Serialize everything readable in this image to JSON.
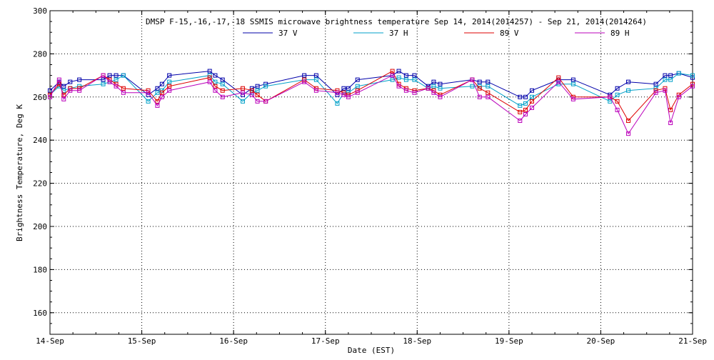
{
  "chart_data": {
    "type": "line",
    "title": "DMSP F-15,-16,-17,-18 SSMIS microwave brightness temperature Sep 14, 2014(2014257) - Sep 21, 2014(2014264)",
    "xlabel": "Date (EST)",
    "ylabel": "Brightness Temperature, Deg K",
    "ylim": [
      150,
      300
    ],
    "xlim": [
      0,
      7
    ],
    "x_ticks": [
      0,
      1,
      2,
      3,
      4,
      5,
      6,
      7
    ],
    "x_tick_labels": [
      "14-Sep",
      "15-Sep",
      "16-Sep",
      "17-Sep",
      "18-Sep",
      "19-Sep",
      "20-Sep",
      "21-Sep"
    ],
    "y_ticks": [
      160,
      180,
      200,
      220,
      240,
      260,
      280,
      300
    ],
    "grid": true,
    "legend_position": "top-center",
    "series": [
      {
        "name": "37 V",
        "color": "#0000aa",
        "points": [
          [
            0.0,
            263
          ],
          [
            0.1,
            267
          ],
          [
            0.15,
            265
          ],
          [
            0.22,
            267
          ],
          [
            0.32,
            268
          ],
          [
            0.58,
            268
          ],
          [
            0.65,
            270
          ],
          [
            0.72,
            270
          ],
          [
            0.8,
            270
          ],
          [
            1.07,
            261
          ],
          [
            1.17,
            264
          ],
          [
            1.22,
            266
          ],
          [
            1.3,
            270
          ],
          [
            1.74,
            272
          ],
          [
            1.8,
            270
          ],
          [
            1.88,
            268
          ],
          [
            2.1,
            261
          ],
          [
            2.2,
            264
          ],
          [
            2.26,
            265
          ],
          [
            2.35,
            266
          ],
          [
            2.77,
            270
          ],
          [
            2.9,
            270
          ],
          [
            3.13,
            261
          ],
          [
            3.2,
            264
          ],
          [
            3.25,
            264
          ],
          [
            3.35,
            268
          ],
          [
            3.73,
            270
          ],
          [
            3.8,
            272
          ],
          [
            3.88,
            270
          ],
          [
            3.97,
            270
          ],
          [
            4.12,
            265
          ],
          [
            4.18,
            267
          ],
          [
            4.25,
            266
          ],
          [
            4.6,
            268
          ],
          [
            4.68,
            267
          ],
          [
            4.77,
            267
          ],
          [
            5.12,
            260
          ],
          [
            5.18,
            260
          ],
          [
            5.25,
            263
          ],
          [
            5.54,
            268
          ],
          [
            5.7,
            268
          ],
          [
            6.1,
            261
          ],
          [
            6.18,
            264
          ],
          [
            6.3,
            267
          ],
          [
            6.6,
            266
          ],
          [
            6.7,
            270
          ],
          [
            6.76,
            270
          ],
          [
            6.85,
            271
          ],
          [
            7.0,
            269
          ]
        ]
      },
      {
        "name": "37 H",
        "color": "#00a0c8",
        "points": [
          [
            0.0,
            261
          ],
          [
            0.1,
            265
          ],
          [
            0.15,
            263
          ],
          [
            0.22,
            264
          ],
          [
            0.32,
            265
          ],
          [
            0.58,
            266
          ],
          [
            0.65,
            267
          ],
          [
            0.72,
            268
          ],
          [
            0.8,
            270
          ],
          [
            1.07,
            258
          ],
          [
            1.17,
            262
          ],
          [
            1.22,
            263
          ],
          [
            1.3,
            267
          ],
          [
            1.74,
            270
          ],
          [
            1.8,
            267
          ],
          [
            1.88,
            266
          ],
          [
            2.1,
            258
          ],
          [
            2.2,
            262
          ],
          [
            2.26,
            263
          ],
          [
            2.35,
            265
          ],
          [
            2.77,
            268
          ],
          [
            2.9,
            268
          ],
          [
            3.13,
            257
          ],
          [
            3.2,
            262
          ],
          [
            3.25,
            262
          ],
          [
            3.35,
            265
          ],
          [
            3.73,
            268
          ],
          [
            3.8,
            269
          ],
          [
            3.88,
            268
          ],
          [
            3.97,
            268
          ],
          [
            4.12,
            264
          ],
          [
            4.18,
            265
          ],
          [
            4.25,
            264
          ],
          [
            4.6,
            265
          ],
          [
            4.68,
            265
          ],
          [
            4.77,
            265
          ],
          [
            5.12,
            256
          ],
          [
            5.18,
            257
          ],
          [
            5.25,
            260
          ],
          [
            5.54,
            266
          ],
          [
            5.7,
            266
          ],
          [
            6.1,
            258
          ],
          [
            6.18,
            261
          ],
          [
            6.3,
            263
          ],
          [
            6.6,
            264
          ],
          [
            6.7,
            268
          ],
          [
            6.76,
            268
          ],
          [
            6.85,
            271
          ],
          [
            7.0,
            270
          ]
        ]
      },
      {
        "name": "89 V",
        "color": "#dd0000",
        "points": [
          [
            0.0,
            261
          ],
          [
            0.1,
            266
          ],
          [
            0.15,
            261
          ],
          [
            0.22,
            264
          ],
          [
            0.32,
            264
          ],
          [
            0.58,
            270
          ],
          [
            0.65,
            268
          ],
          [
            0.72,
            266
          ],
          [
            0.8,
            264
          ],
          [
            1.07,
            263
          ],
          [
            1.17,
            258
          ],
          [
            1.22,
            262
          ],
          [
            1.3,
            265
          ],
          [
            1.74,
            269
          ],
          [
            1.8,
            265
          ],
          [
            1.88,
            263
          ],
          [
            2.1,
            264
          ],
          [
            2.2,
            263
          ],
          [
            2.26,
            261
          ],
          [
            2.35,
            258
          ],
          [
            2.77,
            268
          ],
          [
            2.9,
            264
          ],
          [
            3.13,
            263
          ],
          [
            3.2,
            262
          ],
          [
            3.25,
            261
          ],
          [
            3.35,
            263
          ],
          [
            3.73,
            272
          ],
          [
            3.8,
            266
          ],
          [
            3.88,
            264
          ],
          [
            3.97,
            263
          ],
          [
            4.12,
            264
          ],
          [
            4.18,
            263
          ],
          [
            4.25,
            261
          ],
          [
            4.6,
            268
          ],
          [
            4.68,
            264
          ],
          [
            4.77,
            262
          ],
          [
            5.12,
            253
          ],
          [
            5.18,
            254
          ],
          [
            5.25,
            258
          ],
          [
            5.54,
            269
          ],
          [
            5.7,
            260
          ],
          [
            6.1,
            260
          ],
          [
            6.18,
            258
          ],
          [
            6.3,
            249
          ],
          [
            6.6,
            263
          ],
          [
            6.7,
            264
          ],
          [
            6.76,
            254
          ],
          [
            6.85,
            261
          ],
          [
            7.0,
            266
          ]
        ]
      },
      {
        "name": "89 H",
        "color": "#bb00bb",
        "points": [
          [
            0.0,
            260
          ],
          [
            0.1,
            268
          ],
          [
            0.15,
            259
          ],
          [
            0.22,
            263
          ],
          [
            0.32,
            263
          ],
          [
            0.58,
            270
          ],
          [
            0.65,
            267
          ],
          [
            0.72,
            265
          ],
          [
            0.8,
            262
          ],
          [
            1.07,
            262
          ],
          [
            1.17,
            256
          ],
          [
            1.22,
            260
          ],
          [
            1.3,
            263
          ],
          [
            1.74,
            267
          ],
          [
            1.8,
            263
          ],
          [
            1.88,
            260
          ],
          [
            2.1,
            262
          ],
          [
            2.2,
            261
          ],
          [
            2.26,
            258
          ],
          [
            2.35,
            258
          ],
          [
            2.77,
            267
          ],
          [
            2.9,
            263
          ],
          [
            3.13,
            262
          ],
          [
            3.2,
            261
          ],
          [
            3.25,
            260
          ],
          [
            3.35,
            262
          ],
          [
            3.73,
            270
          ],
          [
            3.8,
            265
          ],
          [
            3.88,
            263
          ],
          [
            3.97,
            262
          ],
          [
            4.12,
            264
          ],
          [
            4.18,
            262
          ],
          [
            4.25,
            260
          ],
          [
            4.6,
            268
          ],
          [
            4.68,
            260
          ],
          [
            4.77,
            260
          ],
          [
            5.12,
            249
          ],
          [
            5.18,
            252
          ],
          [
            5.25,
            255
          ],
          [
            5.54,
            267
          ],
          [
            5.7,
            259
          ],
          [
            6.1,
            260
          ],
          [
            6.18,
            254
          ],
          [
            6.3,
            243
          ],
          [
            6.6,
            262
          ],
          [
            6.7,
            263
          ],
          [
            6.76,
            248
          ],
          [
            6.85,
            260
          ],
          [
            7.0,
            265
          ]
        ]
      }
    ]
  }
}
